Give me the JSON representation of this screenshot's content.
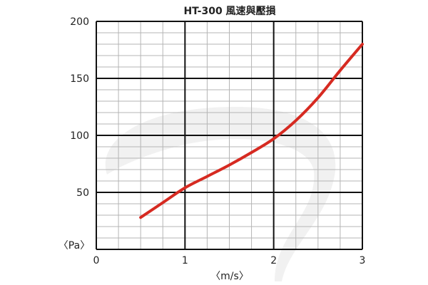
{
  "chart_data": {
    "type": "line",
    "title": "HT-300 風速與壓損",
    "xlabel": "〈m/s〉",
    "ylabel": "〈Pa〉",
    "xlim": [
      0,
      3
    ],
    "ylim": [
      0,
      200
    ],
    "x_ticks": [
      0,
      1,
      2,
      3
    ],
    "y_ticks": [
      50,
      100,
      150,
      200
    ],
    "x_tick_labels": [
      "0",
      "1",
      "2",
      "3"
    ],
    "y_tick_labels": [
      "50",
      "100",
      "150",
      "200"
    ],
    "minor_x_step": 0.25,
    "minor_y_step": 10,
    "grid": true,
    "legend": "none",
    "series": [
      {
        "x": [
          0.5,
          0.75,
          1.0,
          1.25,
          1.5,
          1.75,
          2.0,
          2.25,
          2.5,
          2.75,
          3.0
        ],
        "y": [
          28,
          41,
          54,
          64,
          74,
          85,
          97,
          113,
          133,
          157,
          180
        ],
        "color": "#d62a21"
      }
    ],
    "colors": {
      "line": "#d62a21",
      "grid_major": "#111111",
      "grid_minor": "#b5b5b5",
      "background_swoosh": "#f1f1f1"
    }
  }
}
